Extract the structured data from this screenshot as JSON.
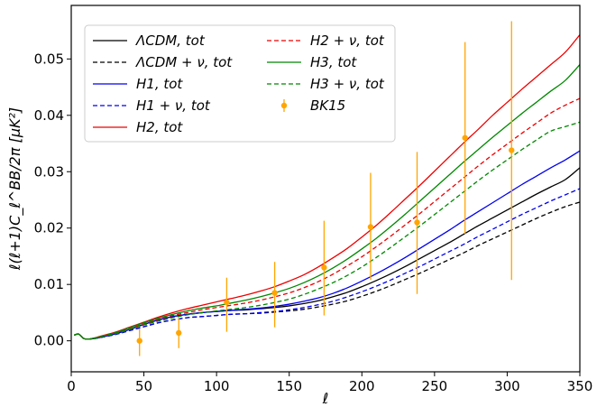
{
  "chart_data": {
    "type": "line",
    "xlabel": "ℓ",
    "ylabel": "ℓ(ℓ+1)C_ℓ^BB/2π [μK²]",
    "xlim": [
      0,
      350
    ],
    "ylim": [
      -0.0055,
      0.0595
    ],
    "x_ticks": [
      0,
      50,
      100,
      150,
      200,
      250,
      300,
      350
    ],
    "y_ticks": [
      0.0,
      0.01,
      0.02,
      0.03,
      0.04,
      0.05
    ],
    "x_tick_labels": [
      "0",
      "50",
      "100",
      "150",
      "200",
      "250",
      "300",
      "350"
    ],
    "y_tick_labels": [
      "0.00",
      "0.01",
      "0.02",
      "0.03",
      "0.04",
      "0.05"
    ],
    "grid": false,
    "legend_position": "top-left",
    "x": [
      2,
      5,
      8,
      10,
      12,
      16,
      20,
      30,
      40,
      50,
      60,
      70,
      80,
      90,
      100,
      110,
      120,
      130,
      140,
      150,
      160,
      170,
      180,
      190,
      200,
      210,
      220,
      230,
      240,
      250,
      260,
      270,
      280,
      290,
      300,
      310,
      320,
      330,
      340,
      350
    ],
    "series": [
      {
        "name": "ΛCDM, tot",
        "color": "#000000",
        "dash": false,
        "values": [
          0.001,
          0.0012,
          0.0005,
          0.0003,
          0.0003,
          0.0004,
          0.0006,
          0.0012,
          0.002,
          0.0029,
          0.0037,
          0.0043,
          0.0047,
          0.005,
          0.0052,
          0.0054,
          0.0055,
          0.0057,
          0.0059,
          0.0062,
          0.0066,
          0.0071,
          0.0078,
          0.0086,
          0.0096,
          0.0107,
          0.0119,
          0.0132,
          0.0146,
          0.016,
          0.0174,
          0.0189,
          0.0204,
          0.0218,
          0.0232,
          0.0246,
          0.026,
          0.0273,
          0.0286,
          0.0307
        ]
      },
      {
        "name": "ΛCDM + ν, tot",
        "color": "#000000",
        "dash": true,
        "values": [
          0.001,
          0.0012,
          0.0005,
          0.0003,
          0.0003,
          0.0004,
          0.0006,
          0.0011,
          0.0018,
          0.0025,
          0.0032,
          0.0037,
          0.0041,
          0.0043,
          0.0045,
          0.0047,
          0.0048,
          0.0049,
          0.0051,
          0.0053,
          0.0056,
          0.006,
          0.0065,
          0.0071,
          0.0079,
          0.0088,
          0.0098,
          0.0109,
          0.012,
          0.0132,
          0.0144,
          0.0156,
          0.0169,
          0.0181,
          0.0193,
          0.0205,
          0.0217,
          0.0228,
          0.0238,
          0.0246
        ]
      },
      {
        "name": "H1, tot",
        "color": "#0000ee",
        "dash": false,
        "values": [
          0.001,
          0.0012,
          0.0005,
          0.0003,
          0.0003,
          0.0004,
          0.0006,
          0.0012,
          0.002,
          0.0029,
          0.0037,
          0.0043,
          0.0047,
          0.005,
          0.0052,
          0.0054,
          0.0056,
          0.0058,
          0.0061,
          0.0065,
          0.007,
          0.0076,
          0.0084,
          0.0094,
          0.0106,
          0.0119,
          0.0133,
          0.0148,
          0.0164,
          0.018,
          0.0196,
          0.0213,
          0.0229,
          0.0245,
          0.0261,
          0.0277,
          0.0292,
          0.0307,
          0.0321,
          0.0337
        ]
      },
      {
        "name": "H1 + ν, tot",
        "color": "#0000ee",
        "dash": true,
        "values": [
          0.001,
          0.0012,
          0.0005,
          0.0003,
          0.0003,
          0.0004,
          0.0006,
          0.0011,
          0.0018,
          0.0025,
          0.0032,
          0.0037,
          0.0041,
          0.0043,
          0.0045,
          0.0047,
          0.0048,
          0.005,
          0.0052,
          0.0055,
          0.0059,
          0.0064,
          0.007,
          0.0078,
          0.0087,
          0.0097,
          0.0108,
          0.012,
          0.0132,
          0.0145,
          0.0158,
          0.0171,
          0.0185,
          0.0198,
          0.0211,
          0.0224,
          0.0236,
          0.0248,
          0.0259,
          0.027
        ]
      },
      {
        "name": "H2, tot",
        "color": "#ee0000",
        "dash": false,
        "values": [
          0.001,
          0.0012,
          0.0005,
          0.0003,
          0.0003,
          0.0005,
          0.0008,
          0.0015,
          0.0024,
          0.0033,
          0.0042,
          0.005,
          0.0057,
          0.0063,
          0.0069,
          0.0075,
          0.0081,
          0.0088,
          0.0096,
          0.0106,
          0.0117,
          0.0131,
          0.0147,
          0.0164,
          0.0184,
          0.0205,
          0.0228,
          0.0252,
          0.0276,
          0.0301,
          0.0326,
          0.0351,
          0.0375,
          0.04,
          0.0423,
          0.0446,
          0.0468,
          0.049,
          0.0512,
          0.0543
        ]
      },
      {
        "name": "H2 + ν, tot",
        "color": "#ee0000",
        "dash": true,
        "values": [
          0.001,
          0.0012,
          0.0005,
          0.0003,
          0.0003,
          0.0004,
          0.0007,
          0.0013,
          0.0021,
          0.003,
          0.0038,
          0.0045,
          0.005,
          0.0055,
          0.0059,
          0.0063,
          0.0067,
          0.0072,
          0.0078,
          0.0085,
          0.0094,
          0.0105,
          0.0118,
          0.0133,
          0.0149,
          0.0167,
          0.0186,
          0.0206,
          0.0226,
          0.0247,
          0.0268,
          0.0289,
          0.031,
          0.033,
          0.0349,
          0.0368,
          0.0386,
          0.0404,
          0.0418,
          0.043
        ]
      },
      {
        "name": "H3, tot",
        "color": "#008800",
        "dash": false,
        "values": [
          0.001,
          0.0012,
          0.0005,
          0.0003,
          0.0003,
          0.0005,
          0.0007,
          0.0014,
          0.0023,
          0.0032,
          0.004,
          0.0047,
          0.0053,
          0.0058,
          0.0062,
          0.0067,
          0.0072,
          0.0078,
          0.0085,
          0.0093,
          0.0103,
          0.0115,
          0.0129,
          0.0145,
          0.0163,
          0.0182,
          0.0203,
          0.0225,
          0.0248,
          0.0271,
          0.0294,
          0.0317,
          0.0339,
          0.0361,
          0.0382,
          0.0403,
          0.0423,
          0.0443,
          0.0462,
          0.049
        ]
      },
      {
        "name": "H3 + ν, tot",
        "color": "#008800",
        "dash": true,
        "values": [
          0.001,
          0.0012,
          0.0005,
          0.0003,
          0.0003,
          0.0004,
          0.0007,
          0.0012,
          0.002,
          0.0028,
          0.0035,
          0.0041,
          0.0046,
          0.005,
          0.0053,
          0.0056,
          0.0059,
          0.0063,
          0.0068,
          0.0074,
          0.0082,
          0.0092,
          0.0103,
          0.0116,
          0.0131,
          0.0148,
          0.0166,
          0.0185,
          0.0204,
          0.0224,
          0.0244,
          0.0264,
          0.0284,
          0.0303,
          0.0321,
          0.0339,
          0.0356,
          0.0372,
          0.038,
          0.0388
        ]
      }
    ],
    "errorbar_series": {
      "name": "BK15",
      "color": "#ffa500",
      "points": [
        {
          "x": 47,
          "y": 0.0,
          "low": -0.0027,
          "high": 0.0021
        },
        {
          "x": 74,
          "y": 0.0014,
          "low": -0.0013,
          "high": 0.004
        },
        {
          "x": 107,
          "y": 0.0068,
          "low": 0.0016,
          "high": 0.0112
        },
        {
          "x": 140,
          "y": 0.0085,
          "low": 0.0024,
          "high": 0.014
        },
        {
          "x": 174,
          "y": 0.013,
          "low": 0.0045,
          "high": 0.0213
        },
        {
          "x": 206,
          "y": 0.0202,
          "low": 0.0108,
          "high": 0.0298
        },
        {
          "x": 238,
          "y": 0.021,
          "low": 0.0083,
          "high": 0.0335
        },
        {
          "x": 271,
          "y": 0.036,
          "low": 0.019,
          "high": 0.053
        },
        {
          "x": 303,
          "y": 0.0338,
          "low": 0.0108,
          "high": 0.0567
        }
      ]
    }
  }
}
